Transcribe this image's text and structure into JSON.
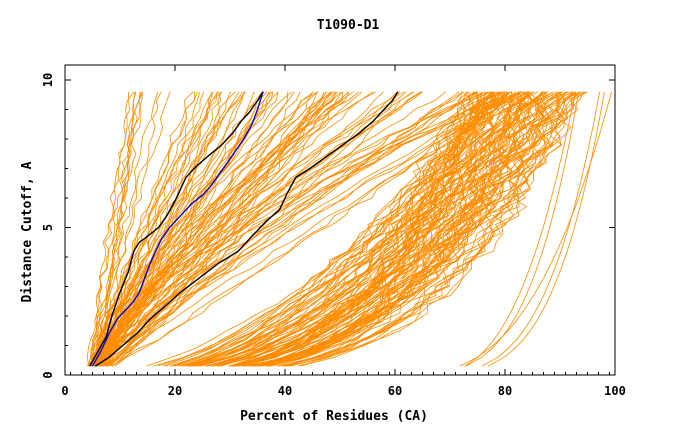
{
  "chart_data": {
    "type": "line",
    "title": "T1090-D1",
    "xlabel": "Percent of Residues (CA)",
    "ylabel": "Distance Cutoff, A",
    "xlim": [
      0,
      100
    ],
    "ylim": [
      0,
      10
    ],
    "x_ticks": [
      0,
      20,
      40,
      60,
      80,
      100
    ],
    "y_ticks": [
      0,
      5,
      10
    ],
    "grid": false,
    "colors": {
      "background_curves": "#ff8c00",
      "highlight_black": "#000000",
      "highlight_blue": "#0000cc",
      "axes": "#000000"
    },
    "series": [
      {
        "color": "#000000",
        "x": [
          4.5,
          6,
          7.5,
          8.5,
          10,
          11.5,
          12.5,
          13.5,
          15,
          17,
          18.5,
          20,
          21,
          22,
          24,
          26.5,
          28.5,
          30.5,
          32,
          33.5,
          35,
          36
        ],
        "y": [
          0.3,
          0.8,
          1.3,
          2.0,
          2.8,
          3.5,
          4.2,
          4.5,
          4.7,
          5.0,
          5.4,
          5.9,
          6.3,
          6.7,
          7.1,
          7.5,
          7.8,
          8.2,
          8.6,
          8.9,
          9.3,
          9.6
        ]
      },
      {
        "color": "#0000cc",
        "x": [
          5,
          6.5,
          8,
          9.5,
          11,
          12.5,
          13.5,
          14.5,
          15.5,
          16.5,
          17.5,
          19,
          21,
          23,
          25,
          26.5,
          28,
          29.5,
          31,
          32.5,
          34,
          35,
          36
        ],
        "y": [
          0.3,
          0.8,
          1.4,
          1.9,
          2.2,
          2.5,
          2.8,
          3.3,
          3.8,
          4.2,
          4.6,
          5.0,
          5.4,
          5.8,
          6.1,
          6.4,
          6.8,
          7.2,
          7.6,
          8.0,
          8.5,
          9.0,
          9.6
        ]
      },
      {
        "color": "#000000",
        "x": [
          5.5,
          8,
          10.5,
          13,
          15.5,
          18,
          21,
          24.5,
          28,
          31.5,
          34,
          36.5,
          39,
          40.5,
          42,
          44.5,
          47.5,
          50.5,
          53.5,
          56,
          58,
          59.5,
          60.5
        ],
        "y": [
          0.3,
          0.6,
          1.0,
          1.4,
          1.9,
          2.3,
          2.8,
          3.3,
          3.8,
          4.2,
          4.7,
          5.2,
          5.6,
          6.2,
          6.7,
          7.0,
          7.4,
          7.8,
          8.2,
          8.6,
          9.0,
          9.3,
          9.6
        ]
      }
    ]
  }
}
